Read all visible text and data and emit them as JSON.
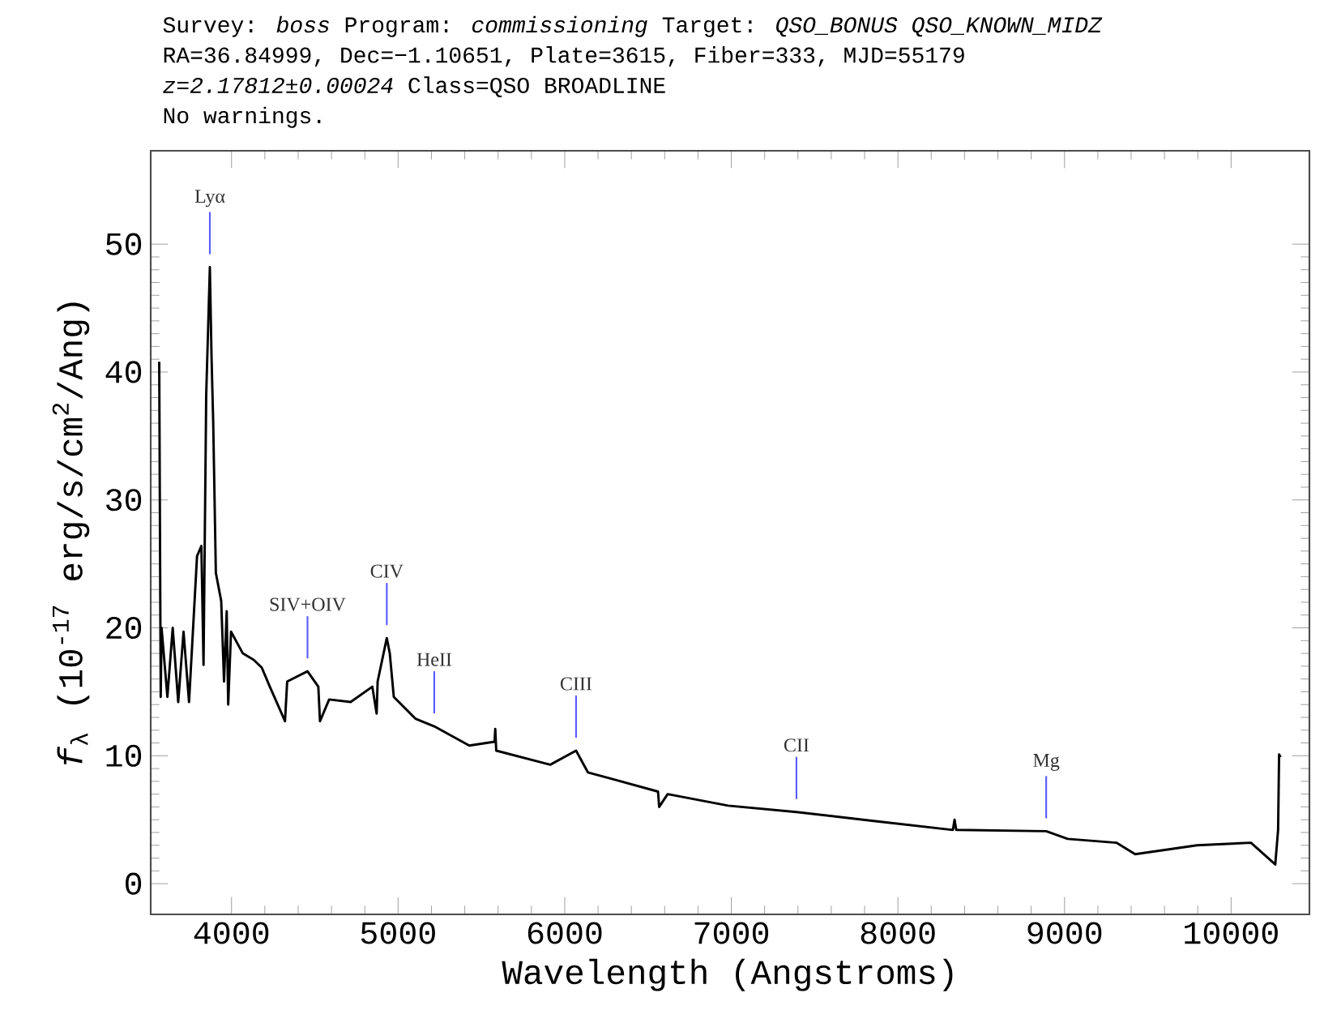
{
  "chart_data": {
    "type": "line",
    "title": "Survey: *boss* Program: *commissioning* Target: *QSO_BONUS QSO_KNOWN_MIDZ*",
    "subtitle": "RA=36.84999, Dec=−1.10651, Plate=3615, Fiber=333, MJD=55179",
    "xlabel": "Wavelength (Angstroms)",
    "ylabel": "*f*$_{λ}$ (10$^{-17}$ erg/s/cm$^{2}$/Ang)",
    "x": [
      3566,
      3575,
      3580,
      3615,
      3647,
      3680,
      3712,
      3745,
      3793,
      3819,
      3832,
      3848,
      3870,
      3880,
      3890,
      3906,
      3938,
      3955,
      3971,
      3980,
      3997,
      4068,
      4133,
      4181,
      4230,
      4321,
      4334,
      4456,
      4521,
      4531,
      4586,
      4715,
      4845,
      4871,
      4877,
      4932,
      4950,
      4974,
      5104,
      5217,
      5427,
      5579,
      5583,
      5589,
      5913,
      6068,
      6139,
      6560,
      6567,
      6618,
      6981,
      7391,
      7854,
      8330,
      8340,
      8350,
      8890,
      9019,
      9311,
      9424,
      9796,
      10119,
      10265,
      10282,
      10288,
      10297
    ],
    "series": [
      {
        "color": "#000000",
        "values": [
          40.8,
          14.6,
          20.0,
          14.6,
          20.0,
          14.2,
          19.7,
          14.2,
          25.6,
          26.4,
          17.1,
          38.2,
          48.2,
          41.2,
          36.1,
          24.3,
          22.1,
          15.8,
          21.3,
          14.0,
          19.7,
          18.0,
          17.5,
          16.9,
          15.4,
          12.7,
          15.8,
          16.6,
          15.4,
          12.7,
          14.4,
          14.2,
          15.4,
          13.3,
          15.8,
          19.2,
          18.0,
          14.6,
          12.9,
          12.3,
          10.8,
          11.1,
          12.1,
          10.4,
          9.3,
          10.4,
          8.7,
          7.2,
          6.0,
          7.0,
          6.1,
          5.6,
          4.9,
          4.2,
          5.0,
          4.2,
          4.1,
          3.5,
          3.2,
          2.3,
          3.0,
          3.2,
          1.5,
          4.2,
          10.1,
          9.9
        ]
      }
    ],
    "marker": "none",
    "line_style": "solid",
    "xlim": [
      3515,
      10470
    ],
    "ylim": [
      -2.4,
      57.3
    ],
    "xticks": [
      4000,
      5000,
      6000,
      7000,
      8000,
      9000,
      10000
    ],
    "yticks": [
      0,
      10,
      20,
      30,
      40,
      50
    ],
    "annotations": [
      "*z=2.17812±0.00024* Class=QSO BROADLINE",
      "No warnings.",
      {
        "text": "Lyα",
        "x": 3870,
        "y": 48.2
      },
      {
        "text": "SIV+OIV",
        "x": 4456,
        "y": 16.6
      },
      {
        "text": "CIV",
        "x": 4932,
        "y": 19.2
      },
      {
        "text": "HeII",
        "x": 5217,
        "y": 12.3
      },
      {
        "text": "CIII",
        "x": 6068,
        "y": 10.4
      },
      {
        "text": "CII",
        "x": 7391,
        "y": 5.6
      },
      {
        "text": "Mg",
        "x": 8890,
        "y": 4.1
      }
    ]
  }
}
